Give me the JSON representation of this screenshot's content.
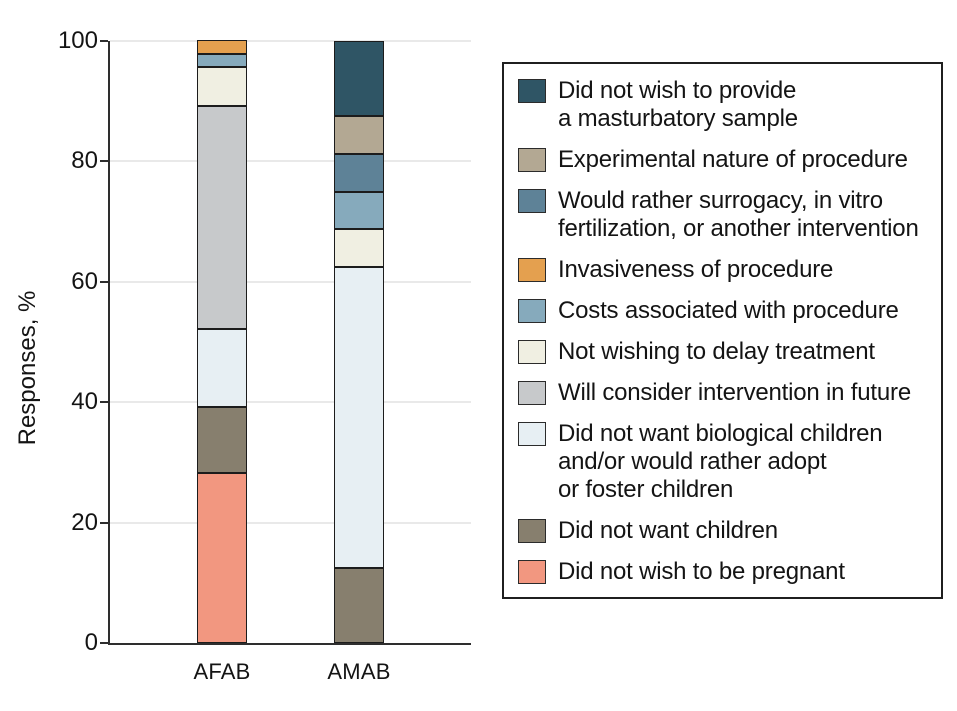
{
  "axes": {
    "y_label": "Responses, %",
    "x_labels": [
      "AFAB",
      "AMAB"
    ]
  },
  "chart_data": {
    "type": "bar",
    "stacked": true,
    "categories": [
      "AFAB",
      "AMAB"
    ],
    "series": [
      {
        "name": "Did not wish to be pregnant",
        "color": "#F29780",
        "values": [
          28.3,
          0
        ]
      },
      {
        "name": "Did not want children",
        "color": "#877F6E",
        "values": [
          10.9,
          12.5
        ]
      },
      {
        "name": "Did not want biological children and/or would rather adopt or foster children",
        "color": "#E7EFF3",
        "values": [
          13.0,
          50.0
        ]
      },
      {
        "name": "Will consider intervention in future",
        "color": "#C7C9CB",
        "values": [
          37.0,
          0
        ]
      },
      {
        "name": "Not wishing to delay treatment",
        "color": "#F0EFE2",
        "values": [
          6.5,
          6.25
        ]
      },
      {
        "name": "Costs associated with procedure",
        "color": "#86AABC",
        "values": [
          2.2,
          6.25
        ]
      },
      {
        "name": "Invasiveness of procedure",
        "color": "#E4A04F",
        "values": [
          2.2,
          0
        ]
      },
      {
        "name": "Would rather surrogacy, in vitro fertilization, or another intervention",
        "color": "#5E8297",
        "values": [
          0,
          6.25
        ]
      },
      {
        "name": "Experimental nature of procedure",
        "color": "#B3A893",
        "values": [
          0,
          6.25
        ]
      },
      {
        "name": "Did not wish to provide a masturbatory sample",
        "color": "#2F5565",
        "values": [
          0,
          12.5
        ]
      }
    ],
    "ylabel": "Responses, %",
    "xlabel": "",
    "ylim": [
      0,
      100
    ],
    "yticks": [
      0,
      20,
      40,
      60,
      80,
      100
    ],
    "grid": true,
    "legend_position": "right"
  },
  "legend": {
    "entries": [
      {
        "color": "#2F5565",
        "lines": [
          "Did not wish to provide",
          "a masturbatory sample"
        ]
      },
      {
        "color": "#B3A893",
        "lines": [
          "Experimental nature of procedure"
        ]
      },
      {
        "color": "#5E8297",
        "lines": [
          "Would rather surrogacy, in vitro",
          "fertilization, or another intervention"
        ]
      },
      {
        "color": "#E4A04F",
        "lines": [
          "Invasiveness of procedure"
        ]
      },
      {
        "color": "#86AABC",
        "lines": [
          "Costs associated with procedure"
        ]
      },
      {
        "color": "#F0EFE2",
        "lines": [
          "Not wishing to delay treatment"
        ]
      },
      {
        "color": "#C7C9CB",
        "lines": [
          "Will consider intervention in future"
        ]
      },
      {
        "color": "#E7EFF3",
        "lines": [
          "Did not want biological children",
          "and/or would rather adopt",
          "or foster children"
        ]
      },
      {
        "color": "#877F6E",
        "lines": [
          "Did not want children"
        ]
      },
      {
        "color": "#F29780",
        "lines": [
          "Did not wish to be pregnant"
        ]
      }
    ]
  }
}
